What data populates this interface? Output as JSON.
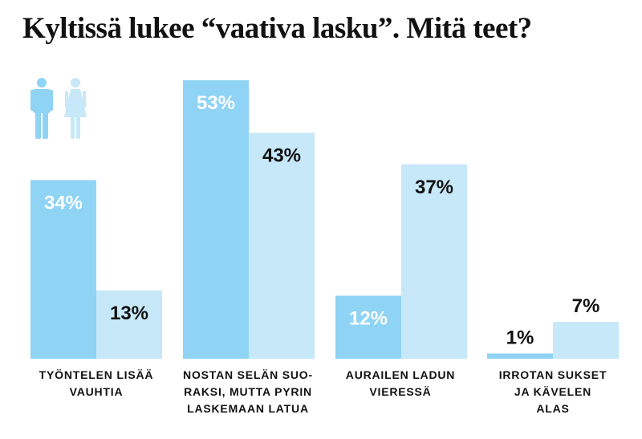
{
  "title": "Kyltissä lukee “vaativa lasku”. Mitä teet?",
  "colors": {
    "men": "#8fd3f5",
    "women": "#c6e8f9",
    "text_dark": "#111111",
    "text_light": "#ffffff"
  },
  "legend": [
    {
      "series": "men",
      "icon": "male-figure-icon"
    },
    {
      "series": "women",
      "icon": "female-figure-icon"
    }
  ],
  "chart_data": {
    "type": "bar",
    "title": "Kyltissä lukee “vaativa lasku”. Mitä teet?",
    "categories": [
      "TYÖNTELEN LISÄÄ\nVAUHTIA",
      "NOSTAN SELÄN SUO-\nRAKSI, MUTTA PYRIN\nLASKEMAAN LATUA",
      "AURAILEN LADUN\nVIERESSÄ",
      "IRROTAN SUKSET\nJA KÄVELEN\nALAS"
    ],
    "series": [
      {
        "values": [
          34,
          53,
          12,
          1
        ],
        "labels": [
          "34%",
          "53%",
          "12%",
          "1%"
        ],
        "color": "#8fd3f5"
      },
      {
        "values": [
          13,
          43,
          37,
          7
        ],
        "labels": [
          "13%",
          "43%",
          "37%",
          "7%"
        ],
        "color": "#c6e8f9"
      }
    ],
    "ylim": [
      0,
      53
    ],
    "grid": false,
    "legend": "top-left icons"
  }
}
